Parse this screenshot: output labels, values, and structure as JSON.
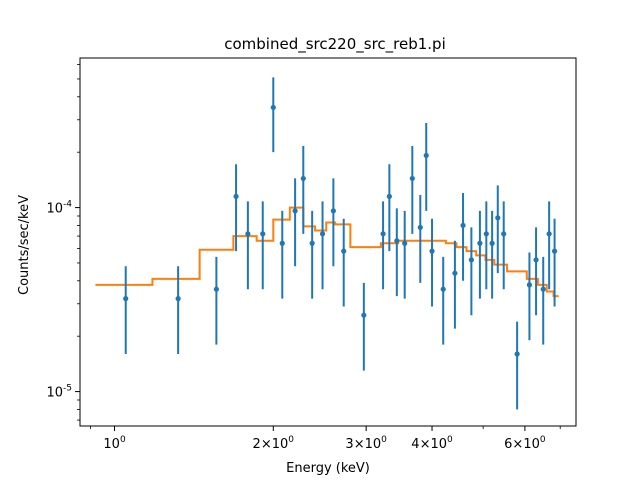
{
  "chart_data": {
    "type": "scatter",
    "title": "combined_src220_src_reb1.pi",
    "xlabel": "Energy (keV)",
    "ylabel": "Counts/sec/keV",
    "xscale": "log",
    "yscale": "log",
    "xlim": [
      0.86,
      7.5
    ],
    "ylim": [
      6.5e-06,
      0.00065
    ],
    "grid": false,
    "x_ticks": [
      {
        "value": 1.0,
        "label": "10^0"
      },
      {
        "value": 2.0,
        "label": "2×10^0"
      },
      {
        "value": 3.0,
        "label": "3×10^0"
      },
      {
        "value": 4.0,
        "label": "4×10^0"
      },
      {
        "value": 6.0,
        "label": "6×10^0"
      }
    ],
    "y_ticks": [
      {
        "value": 1e-05,
        "label": "10^-5"
      },
      {
        "value": 0.0001,
        "label": "10^-4"
      }
    ],
    "series": [
      {
        "kind": "data",
        "color": "#1f77b4",
        "points": [
          {
            "x": 1.05,
            "y": 3.2e-05,
            "ylo": 1.6e-05,
            "yhi": 4.8e-05
          },
          {
            "x": 1.32,
            "y": 3.2e-05,
            "ylo": 1.6e-05,
            "yhi": 4.8e-05
          },
          {
            "x": 1.56,
            "y": 3.6e-05,
            "ylo": 1.8e-05,
            "yhi": 5.4e-05
          },
          {
            "x": 1.7,
            "y": 0.000115,
            "ylo": 5.8e-05,
            "yhi": 0.000172
          },
          {
            "x": 1.79,
            "y": 7.2e-05,
            "ylo": 3.6e-05,
            "yhi": 0.000108
          },
          {
            "x": 1.91,
            "y": 7.2e-05,
            "ylo": 3.6e-05,
            "yhi": 0.000108
          },
          {
            "x": 2.0,
            "y": 0.00035,
            "ylo": 0.0002,
            "yhi": 0.00051
          },
          {
            "x": 2.08,
            "y": 6.4e-05,
            "ylo": 3.2e-05,
            "yhi": 9.6e-05
          },
          {
            "x": 2.2,
            "y": 9.6e-05,
            "ylo": 4.8e-05,
            "yhi": 0.000144
          },
          {
            "x": 2.28,
            "y": 0.000144,
            "ylo": 7.2e-05,
            "yhi": 0.000216
          },
          {
            "x": 2.37,
            "y": 6.4e-05,
            "ylo": 3.2e-05,
            "yhi": 9.6e-05
          },
          {
            "x": 2.48,
            "y": 7.2e-05,
            "ylo": 3.6e-05,
            "yhi": 0.000108
          },
          {
            "x": 2.6,
            "y": 9.6e-05,
            "ylo": 4.8e-05,
            "yhi": 0.000144
          },
          {
            "x": 2.72,
            "y": 5.8e-05,
            "ylo": 2.9e-05,
            "yhi": 8.7e-05
          },
          {
            "x": 2.97,
            "y": 2.6e-05,
            "ylo": 1.3e-05,
            "yhi": 3.9e-05
          },
          {
            "x": 3.23,
            "y": 7.2e-05,
            "ylo": 3.6e-05,
            "yhi": 0.000108
          },
          {
            "x": 3.32,
            "y": 0.000115,
            "ylo": 5.8e-05,
            "yhi": 0.000172
          },
          {
            "x": 3.43,
            "y": 6.6e-05,
            "ylo": 3.3e-05,
            "yhi": 9.9e-05
          },
          {
            "x": 3.55,
            "y": 6.4e-05,
            "ylo": 3.2e-05,
            "yhi": 9.6e-05
          },
          {
            "x": 3.67,
            "y": 0.000144,
            "ylo": 7.2e-05,
            "yhi": 0.000216
          },
          {
            "x": 3.8,
            "y": 7.8e-05,
            "ylo": 3.9e-05,
            "yhi": 0.000117
          },
          {
            "x": 3.9,
            "y": 0.000192,
            "ylo": 9.6e-05,
            "yhi": 0.000288
          },
          {
            "x": 4.0,
            "y": 5.8e-05,
            "ylo": 2.9e-05,
            "yhi": 8.7e-05
          },
          {
            "x": 4.2,
            "y": 3.6e-05,
            "ylo": 1.8e-05,
            "yhi": 5.4e-05
          },
          {
            "x": 4.42,
            "y": 4.4e-05,
            "ylo": 2.2e-05,
            "yhi": 6.6e-05
          },
          {
            "x": 4.58,
            "y": 8e-05,
            "ylo": 4e-05,
            "yhi": 0.00012
          },
          {
            "x": 4.75,
            "y": 5.2e-05,
            "ylo": 2.6e-05,
            "yhi": 7.8e-05
          },
          {
            "x": 4.93,
            "y": 6.4e-05,
            "ylo": 3.2e-05,
            "yhi": 9.6e-05
          },
          {
            "x": 5.07,
            "y": 7.2e-05,
            "ylo": 3.6e-05,
            "yhi": 0.000108
          },
          {
            "x": 5.2,
            "y": 6.4e-05,
            "ylo": 3.2e-05,
            "yhi": 9.6e-05
          },
          {
            "x": 5.33,
            "y": 8.8e-05,
            "ylo": 4.4e-05,
            "yhi": 0.000132
          },
          {
            "x": 5.47,
            "y": 7.2e-05,
            "ylo": 3.6e-05,
            "yhi": 0.000108
          },
          {
            "x": 5.8,
            "y": 1.6e-05,
            "ylo": 8e-06,
            "yhi": 2.4e-05
          },
          {
            "x": 6.12,
            "y": 3.8e-05,
            "ylo": 1.9e-05,
            "yhi": 5.7e-05
          },
          {
            "x": 6.3,
            "y": 5.2e-05,
            "ylo": 2.6e-05,
            "yhi": 7.8e-05
          },
          {
            "x": 6.5,
            "y": 3.6e-05,
            "ylo": 1.8e-05,
            "yhi": 5.4e-05
          },
          {
            "x": 6.67,
            "y": 7.2e-05,
            "ylo": 3.6e-05,
            "yhi": 0.000108
          },
          {
            "x": 6.83,
            "y": 5.8e-05,
            "ylo": 2.9e-05,
            "yhi": 8.7e-05
          }
        ]
      },
      {
        "kind": "model-step",
        "color": "#ff7f0e",
        "steps": [
          {
            "x0": 0.92,
            "x1": 1.18,
            "y": 3.8e-05
          },
          {
            "x0": 1.18,
            "x1": 1.45,
            "y": 4.1e-05
          },
          {
            "x0": 1.45,
            "x1": 1.68,
            "y": 5.9e-05
          },
          {
            "x0": 1.68,
            "x1": 1.86,
            "y": 7e-05
          },
          {
            "x0": 1.86,
            "x1": 2.0,
            "y": 6.6e-05
          },
          {
            "x0": 2.0,
            "x1": 2.15,
            "y": 8.6e-05
          },
          {
            "x0": 2.15,
            "x1": 2.28,
            "y": 0.0001
          },
          {
            "x0": 2.28,
            "x1": 2.4,
            "y": 7.9e-05
          },
          {
            "x0": 2.4,
            "x1": 2.52,
            "y": 7.5e-05
          },
          {
            "x0": 2.52,
            "x1": 2.62,
            "y": 8.3e-05
          },
          {
            "x0": 2.62,
            "x1": 2.8,
            "y": 8.1e-05
          },
          {
            "x0": 2.8,
            "x1": 3.2,
            "y": 6.1e-05
          },
          {
            "x0": 3.2,
            "x1": 3.45,
            "y": 6.4e-05
          },
          {
            "x0": 3.45,
            "x1": 3.75,
            "y": 6.6e-05
          },
          {
            "x0": 3.75,
            "x1": 4.25,
            "y": 6.6e-05
          },
          {
            "x0": 4.25,
            "x1": 4.45,
            "y": 6.4e-05
          },
          {
            "x0": 4.45,
            "x1": 4.65,
            "y": 6.1e-05
          },
          {
            "x0": 4.65,
            "x1": 4.85,
            "y": 5.8e-05
          },
          {
            "x0": 4.85,
            "x1": 5.05,
            "y": 5.5e-05
          },
          {
            "x0": 5.05,
            "x1": 5.25,
            "y": 5.2e-05
          },
          {
            "x0": 5.25,
            "x1": 5.55,
            "y": 4.9e-05
          },
          {
            "x0": 5.55,
            "x1": 6.05,
            "y": 4.5e-05
          },
          {
            "x0": 6.05,
            "x1": 6.35,
            "y": 4.1e-05
          },
          {
            "x0": 6.35,
            "x1": 6.6,
            "y": 3.8e-05
          },
          {
            "x0": 6.6,
            "x1": 6.8,
            "y": 3.5e-05
          },
          {
            "x0": 6.8,
            "x1": 6.95,
            "y": 3.3e-05
          }
        ]
      }
    ]
  }
}
